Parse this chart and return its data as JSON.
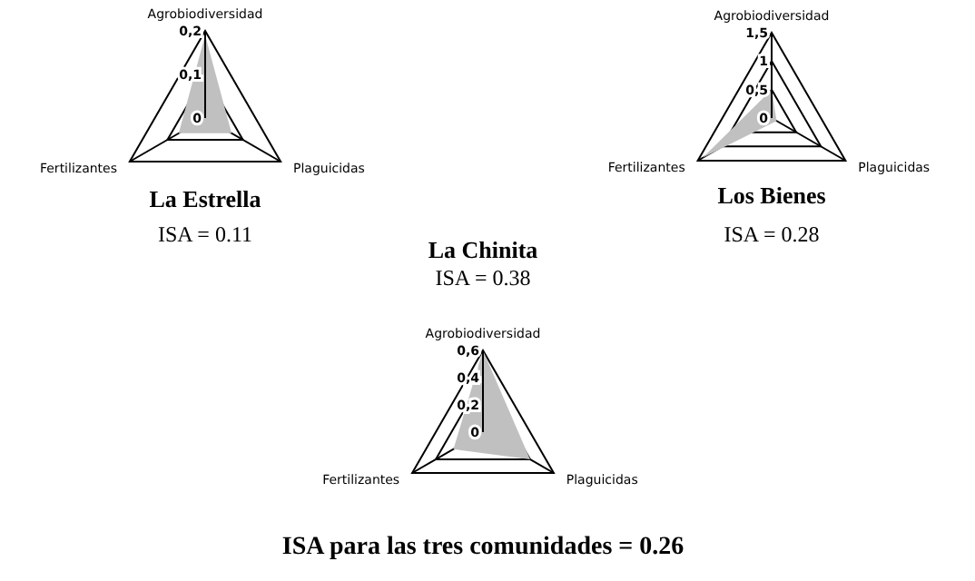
{
  "chart_data": [
    {
      "type": "radar",
      "title": "La Estrella",
      "annotations": [
        "ISA = 0.11"
      ],
      "categories": [
        "Agrobiodiversidad",
        "Plaguicidas",
        "Fertilizantes"
      ],
      "ylim": [
        0,
        0.2
      ],
      "yticks": [
        {
          "value": 0,
          "label": "0"
        },
        {
          "value": 0.1,
          "label": "0,1"
        },
        {
          "value": 0.2,
          "label": "0,2"
        }
      ],
      "series": [
        {
          "color": "#c0c0c0",
          "values": [
            0.19,
            0.07,
            0.07
          ]
        }
      ]
    },
    {
      "type": "radar",
      "title": "Los Bienes",
      "annotations": [
        "ISA = 0.28"
      ],
      "categories": [
        "Agrobiodiversidad",
        "Plaguicidas",
        "Fertilizantes"
      ],
      "ylim": [
        0,
        1.5
      ],
      "yticks": [
        {
          "value": 0,
          "label": "0"
        },
        {
          "value": 0.5,
          "label": "0,5"
        },
        {
          "value": 1,
          "label": "1"
        },
        {
          "value": 1.5,
          "label": "1,5"
        }
      ],
      "series": [
        {
          "color": "#c0c0c0",
          "values": [
            0.5,
            0.1,
            1.4
          ]
        }
      ]
    },
    {
      "type": "radar",
      "title": "La Chinita",
      "annotations": [
        "ISA = 0.38",
        "ISA para las tres comunidades = 0.26"
      ],
      "categories": [
        "Agrobiodiversidad",
        "Plaguicidas",
        "Fertilizantes"
      ],
      "ylim": [
        0,
        0.6
      ],
      "yticks": [
        {
          "value": 0,
          "label": "0"
        },
        {
          "value": 0.2,
          "label": "0,2"
        },
        {
          "value": 0.4,
          "label": "0,4"
        },
        {
          "value": 0.6,
          "label": "0,6"
        }
      ],
      "series": [
        {
          "color": "#c0c0c0",
          "values": [
            0.6,
            0.4,
            0.25
          ]
        }
      ]
    }
  ]
}
